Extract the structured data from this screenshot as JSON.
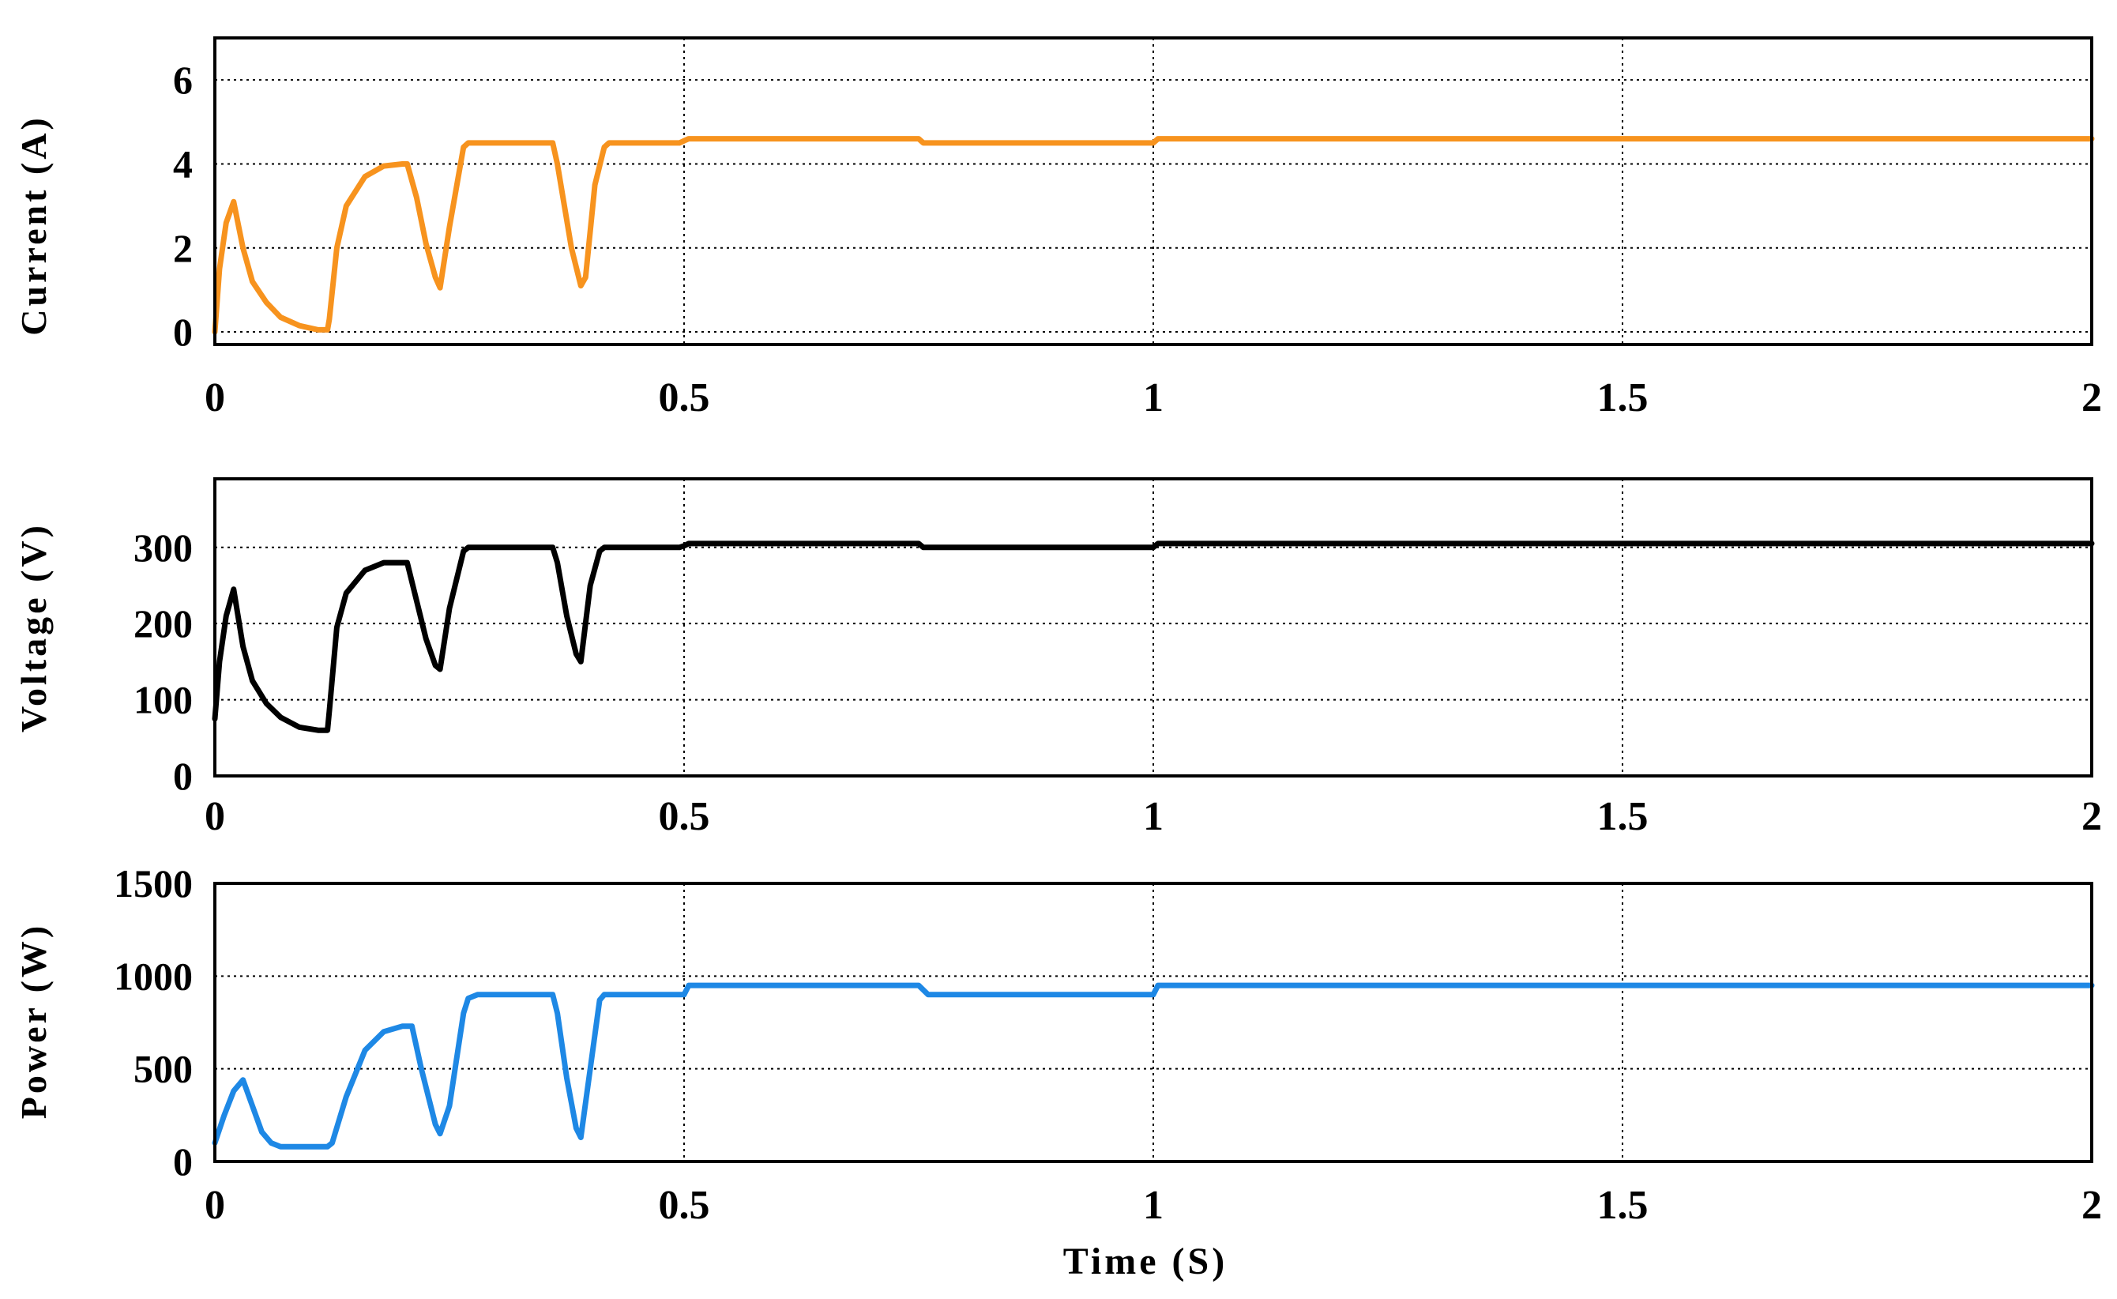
{
  "chart_data": [
    {
      "type": "line",
      "ylabel": "Current (A)",
      "xlim": [
        0,
        2
      ],
      "ylim": [
        -0.3,
        7
      ],
      "xticks": [
        0,
        0.5,
        1,
        1.5,
        2
      ],
      "xtick_labels": [
        "0",
        "0.5",
        "1",
        "1.5",
        "2"
      ],
      "yticks": [
        0,
        2,
        4,
        6
      ],
      "ytick_labels": [
        "0",
        "2",
        "4",
        "6"
      ],
      "grid": true,
      "series": [
        {
          "color": "#f7931e",
          "x": [
            0,
            0.005,
            0.012,
            0.02,
            0.03,
            0.04,
            0.055,
            0.07,
            0.09,
            0.11,
            0.12,
            0.122,
            0.13,
            0.14,
            0.16,
            0.18,
            0.2,
            0.205,
            0.215,
            0.225,
            0.235,
            0.24,
            0.25,
            0.265,
            0.27,
            0.28,
            0.36,
            0.365,
            0.38,
            0.39,
            0.395,
            0.405,
            0.415,
            0.42,
            0.43,
            0.495,
            0.5,
            0.505,
            0.75,
            0.755,
            1.0,
            1.005,
            2.0
          ],
          "y": [
            0,
            1.5,
            2.6,
            3.1,
            2.0,
            1.2,
            0.7,
            0.35,
            0.15,
            0.05,
            0.05,
            0.3,
            2.0,
            3.0,
            3.7,
            3.95,
            4.0,
            4.0,
            3.2,
            2.1,
            1.3,
            1.05,
            2.5,
            4.4,
            4.5,
            4.5,
            4.5,
            4.0,
            2.0,
            1.1,
            1.3,
            3.5,
            4.4,
            4.5,
            4.5,
            4.5,
            4.55,
            4.6,
            4.6,
            4.5,
            4.5,
            4.6,
            4.6
          ]
        }
      ]
    },
    {
      "type": "line",
      "ylabel": "Voltage (V)",
      "xlim": [
        0,
        2
      ],
      "ylim": [
        0,
        390
      ],
      "xticks": [
        0,
        0.5,
        1,
        1.5,
        2
      ],
      "xtick_labels": [
        "0",
        "0.5",
        "1",
        "1.5",
        "2"
      ],
      "yticks": [
        0,
        100,
        200,
        300
      ],
      "ytick_labels": [
        "0",
        "100",
        "200",
        "300"
      ],
      "grid": true,
      "series": [
        {
          "color": "#000000",
          "x": [
            0,
            0.005,
            0.012,
            0.02,
            0.03,
            0.04,
            0.055,
            0.07,
            0.09,
            0.11,
            0.12,
            0.122,
            0.13,
            0.14,
            0.16,
            0.18,
            0.2,
            0.205,
            0.215,
            0.225,
            0.235,
            0.24,
            0.25,
            0.265,
            0.27,
            0.28,
            0.36,
            0.365,
            0.375,
            0.385,
            0.39,
            0.4,
            0.41,
            0.415,
            0.43,
            0.495,
            0.5,
            0.505,
            0.75,
            0.755,
            1.0,
            1.005,
            2.0
          ],
          "y": [
            75,
            150,
            210,
            245,
            170,
            125,
            95,
            77,
            64,
            60,
            60,
            85,
            195,
            240,
            270,
            280,
            280,
            280,
            230,
            180,
            145,
            140,
            220,
            295,
            300,
            300,
            300,
            280,
            210,
            160,
            150,
            250,
            295,
            300,
            300,
            300,
            302,
            305,
            305,
            300,
            300,
            305,
            305
          ]
        }
      ]
    },
    {
      "type": "line",
      "ylabel": "Power (W)",
      "xlabel": "Time (S)",
      "xlim": [
        0,
        2
      ],
      "ylim": [
        0,
        1500
      ],
      "xticks": [
        0,
        0.5,
        1,
        1.5,
        2
      ],
      "xtick_labels": [
        "0",
        "0.5",
        "1",
        "1.5",
        "2"
      ],
      "yticks": [
        0,
        500,
        1000,
        1500
      ],
      "ytick_labels": [
        "0",
        "500",
        "1000",
        "1500"
      ],
      "grid": true,
      "series": [
        {
          "color": "#1e88e5",
          "x": [
            0,
            0.01,
            0.02,
            0.03,
            0.04,
            0.05,
            0.06,
            0.07,
            0.12,
            0.125,
            0.14,
            0.16,
            0.18,
            0.2,
            0.21,
            0.22,
            0.235,
            0.24,
            0.25,
            0.265,
            0.27,
            0.28,
            0.36,
            0.365,
            0.375,
            0.385,
            0.39,
            0.4,
            0.41,
            0.415,
            0.43,
            0.5,
            0.505,
            0.75,
            0.76,
            1.0,
            1.005,
            2.0
          ],
          "y": [
            100,
            250,
            380,
            440,
            300,
            160,
            100,
            80,
            80,
            100,
            350,
            600,
            700,
            730,
            730,
            500,
            200,
            150,
            300,
            800,
            880,
            900,
            900,
            800,
            450,
            180,
            130,
            500,
            870,
            900,
            900,
            900,
            950,
            950,
            900,
            900,
            950,
            950
          ]
        }
      ]
    }
  ]
}
